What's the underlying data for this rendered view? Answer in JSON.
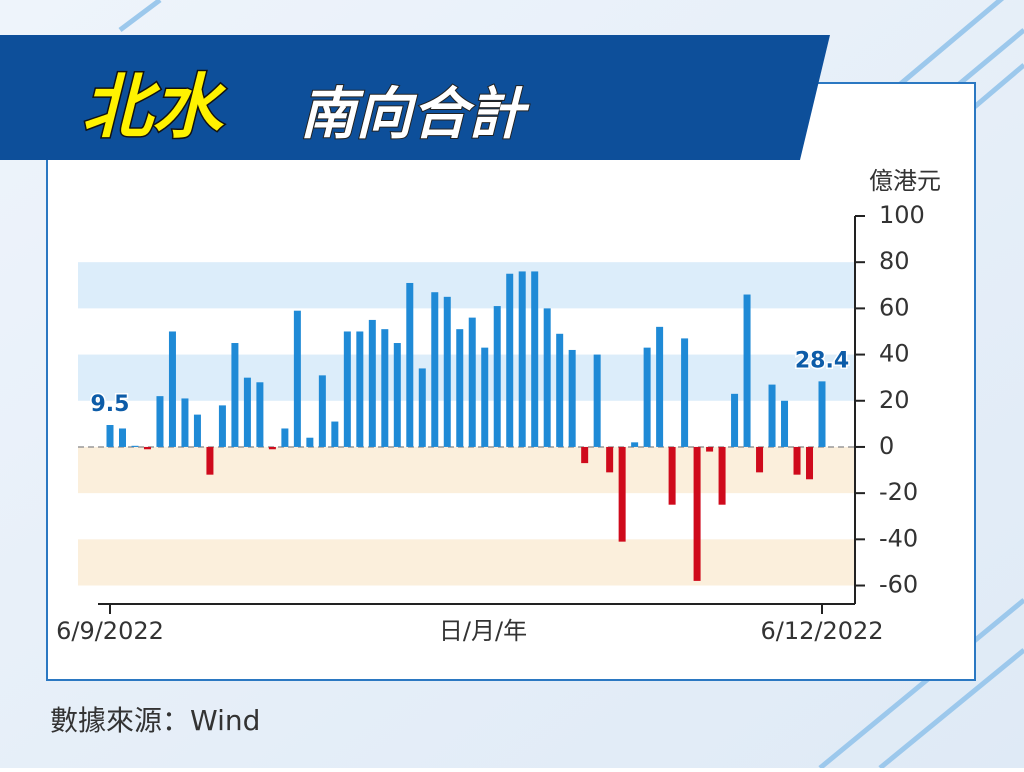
{
  "chart_data": {
    "type": "bar",
    "title": "北水",
    "subtitle": "南向合計",
    "y_label": "億港元",
    "x_label": "日/月/年",
    "source": "數據來源：Wind",
    "categories": [
      "6/9/2022",
      null,
      null,
      null,
      null,
      null,
      null,
      null,
      null,
      null,
      null,
      null,
      null,
      null,
      null,
      null,
      null,
      null,
      null,
      null,
      null,
      null,
      null,
      null,
      null,
      null,
      null,
      null,
      null,
      null,
      null,
      null,
      null,
      null,
      null,
      null,
      null,
      null,
      null,
      null,
      null,
      null,
      null,
      null,
      null,
      null,
      null,
      null,
      null,
      null,
      null,
      null,
      null,
      null,
      null,
      null,
      null,
      "6/12/2022"
    ],
    "values": [
      9.5,
      8,
      0.5,
      -1,
      22,
      50,
      21,
      14,
      -12,
      18,
      45,
      30,
      28,
      -1,
      8,
      59,
      4,
      31,
      11,
      50,
      50,
      55,
      51,
      45,
      71,
      34,
      67,
      65,
      51,
      56,
      43,
      61,
      75,
      76,
      76,
      60,
      49,
      42,
      -7,
      40,
      -11,
      -41,
      2,
      43,
      52,
      -25,
      47,
      -58,
      -2,
      -25,
      23,
      66,
      -11,
      27,
      20,
      -12,
      -14,
      28.4
    ],
    "value_labels": [
      "9.5",
      null,
      null,
      null,
      null,
      null,
      null,
      null,
      null,
      null,
      null,
      null,
      null,
      null,
      null,
      null,
      null,
      null,
      null,
      null,
      null,
      null,
      null,
      null,
      null,
      null,
      null,
      null,
      null,
      null,
      null,
      null,
      null,
      null,
      null,
      null,
      null,
      null,
      null,
      null,
      null,
      null,
      null,
      null,
      null,
      null,
      null,
      null,
      null,
      null,
      null,
      null,
      null,
      null,
      null,
      null,
      null,
      "28.4"
    ],
    "positive_color": "#1f8ad6",
    "negative_color": "#cf0a1c",
    "ylim": [
      -68,
      100
    ],
    "yticks": [
      100,
      80,
      60,
      40,
      20,
      0,
      -20,
      -40,
      -60
    ],
    "bands": [
      {
        "from": 60,
        "to": 80,
        "color": "#dcedfa"
      },
      {
        "from": 20,
        "to": 40,
        "color": "#dcedfa"
      },
      {
        "from": -20,
        "to": 0,
        "color": "#fbefdc"
      },
      {
        "from": -60,
        "to": -40,
        "color": "#fbefdc"
      }
    ],
    "zero_line": true
  }
}
